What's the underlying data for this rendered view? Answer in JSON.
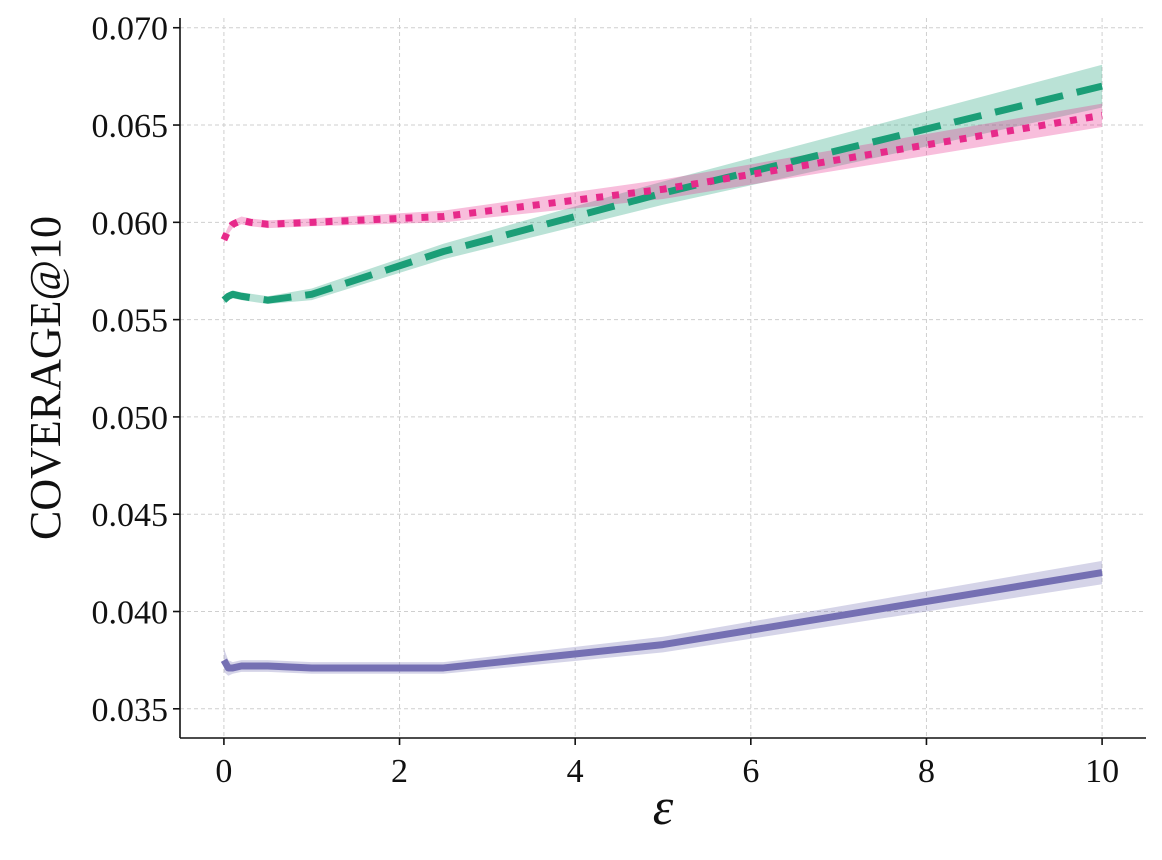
{
  "chart_data": {
    "type": "line",
    "title": "",
    "xlabel": "ε",
    "ylabel": "COVERAGE@10",
    "xlim": [
      -0.5,
      10.5
    ],
    "ylim": [
      0.0335,
      0.0705
    ],
    "xticks": [
      0,
      2,
      4,
      6,
      8,
      10
    ],
    "xtick_labels": [
      "0",
      "2",
      "4",
      "6",
      "8",
      "10"
    ],
    "yticks": [
      0.035,
      0.04,
      0.045,
      0.05,
      0.055,
      0.06,
      0.065,
      0.07
    ],
    "ytick_labels": [
      "0.035",
      "0.040",
      "0.045",
      "0.050",
      "0.055",
      "0.060",
      "0.065",
      "0.070"
    ],
    "grid": true,
    "series": [
      {
        "name": "series-purple-solid",
        "color": "#7570b3",
        "line_style": "solid",
        "x": [
          0,
          0.05,
          0.1,
          0.2,
          0.5,
          1,
          2.5,
          5,
          10
        ],
        "y": [
          0.0375,
          0.0371,
          0.0371,
          0.0372,
          0.0372,
          0.0371,
          0.0371,
          0.0383,
          0.042
        ],
        "band": [
          0.0006,
          0.0004,
          0.0003,
          0.0003,
          0.0003,
          0.0003,
          0.0003,
          0.0004,
          0.0006
        ]
      },
      {
        "name": "series-green-dashed",
        "color": "#1b9e77",
        "line_style": "dashed",
        "x": [
          0,
          0.05,
          0.1,
          0.2,
          0.5,
          1,
          2.5,
          5,
          10
        ],
        "y": [
          0.056,
          0.0562,
          0.0563,
          0.0562,
          0.056,
          0.0563,
          0.0585,
          0.0615,
          0.067
        ],
        "band": [
          0.0002,
          0.0002,
          0.0002,
          0.0002,
          0.0002,
          0.0003,
          0.0004,
          0.0006,
          0.0011
        ]
      },
      {
        "name": "series-pink-dotted",
        "color": "#e7298a",
        "line_style": "dotted",
        "x": [
          0,
          0.05,
          0.1,
          0.2,
          0.3,
          0.5,
          1,
          2.5,
          5,
          10
        ],
        "y": [
          0.0591,
          0.0596,
          0.0599,
          0.0601,
          0.06,
          0.0599,
          0.06,
          0.0603,
          0.0617,
          0.0655
        ],
        "band": [
          0.0002,
          0.0002,
          0.0002,
          0.0002,
          0.0002,
          0.0002,
          0.0002,
          0.0003,
          0.0005,
          0.0006
        ]
      }
    ]
  }
}
